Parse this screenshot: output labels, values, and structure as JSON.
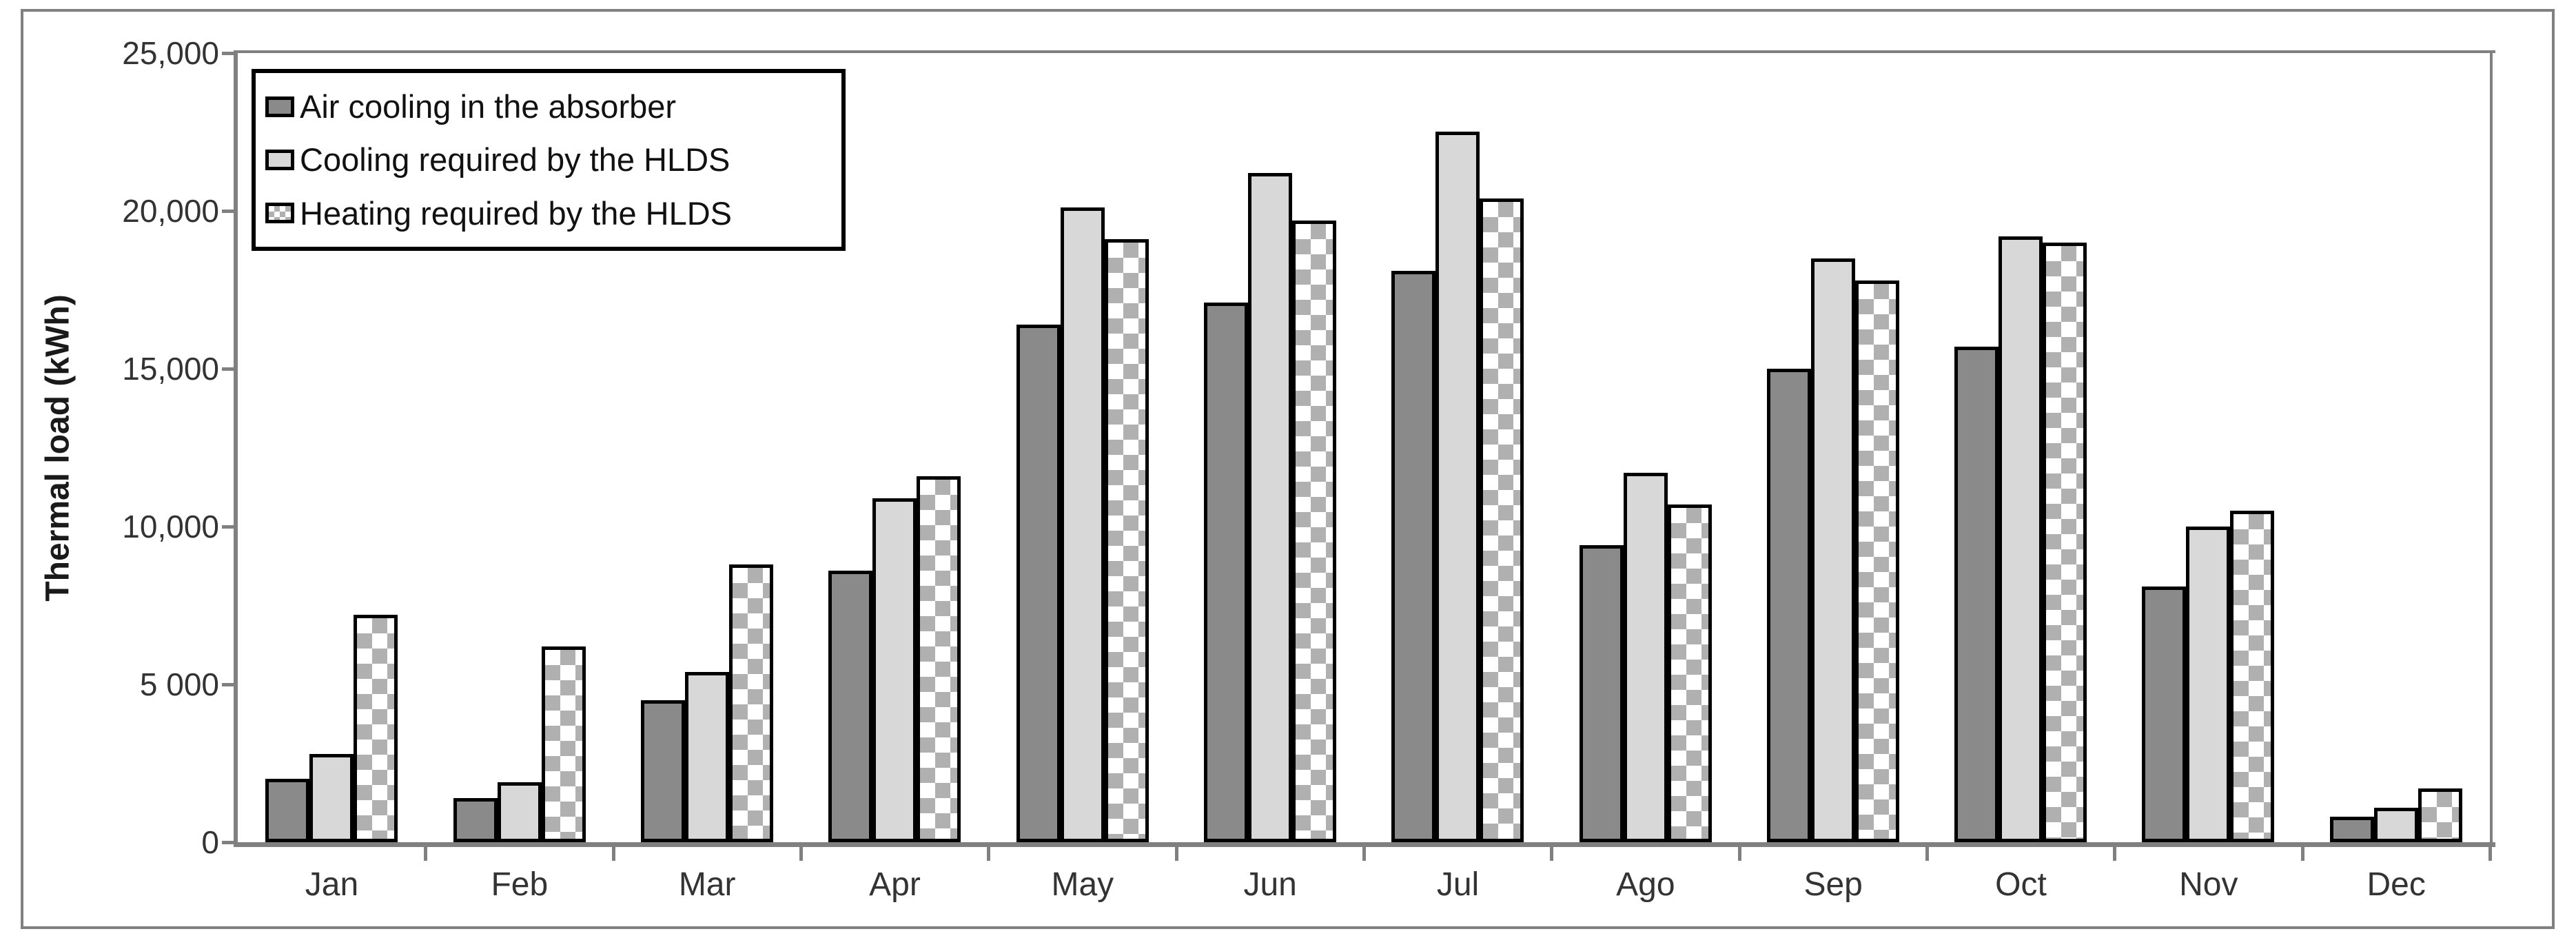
{
  "figure": {
    "background": "#ffffff",
    "frame_color": "#808080",
    "axis_color": "#808080",
    "bar_border_color": "#000000",
    "text_color": "#333333"
  },
  "chart_data": {
    "type": "bar",
    "title": "",
    "xlabel": "",
    "ylabel": "Thermal load (kWh)",
    "ylim": [
      0,
      25000
    ],
    "ytick_values": [
      0,
      5000,
      10000,
      15000,
      20000,
      25000
    ],
    "ytick_labels": [
      "0",
      "5 000",
      "10,000",
      "15,000",
      "20,000",
      "25,000"
    ],
    "grid": false,
    "legend_position": "top-left",
    "plot_border": true,
    "categories": [
      "Jan",
      "Feb",
      "Mar",
      "Apr",
      "May",
      "Jun",
      "Jul",
      "Ago",
      "Sep",
      "Oct",
      "Nov",
      "Dec"
    ],
    "series": [
      {
        "name": "Air cooling in the absorber",
        "style": "solid",
        "fill": "#8a8a8a",
        "values": [
          2000,
          1400,
          4500,
          8600,
          16400,
          17100,
          18100,
          9400,
          15000,
          15700,
          8100,
          800
        ]
      },
      {
        "name": "Cooling required by the HLDS",
        "style": "solid",
        "fill": "#d8d8d8",
        "values": [
          2800,
          1900,
          5400,
          10900,
          20100,
          21200,
          22500,
          11700,
          18500,
          19200,
          10000,
          1100
        ]
      },
      {
        "name": "Heating required by the HLDS",
        "style": "checkerboard",
        "fill": "#ffffff",
        "pattern_color": "#b0b0b0",
        "values": [
          7200,
          6200,
          8800,
          11600,
          19100,
          19700,
          20400,
          10700,
          17800,
          19000,
          10500,
          1700
        ]
      }
    ]
  }
}
